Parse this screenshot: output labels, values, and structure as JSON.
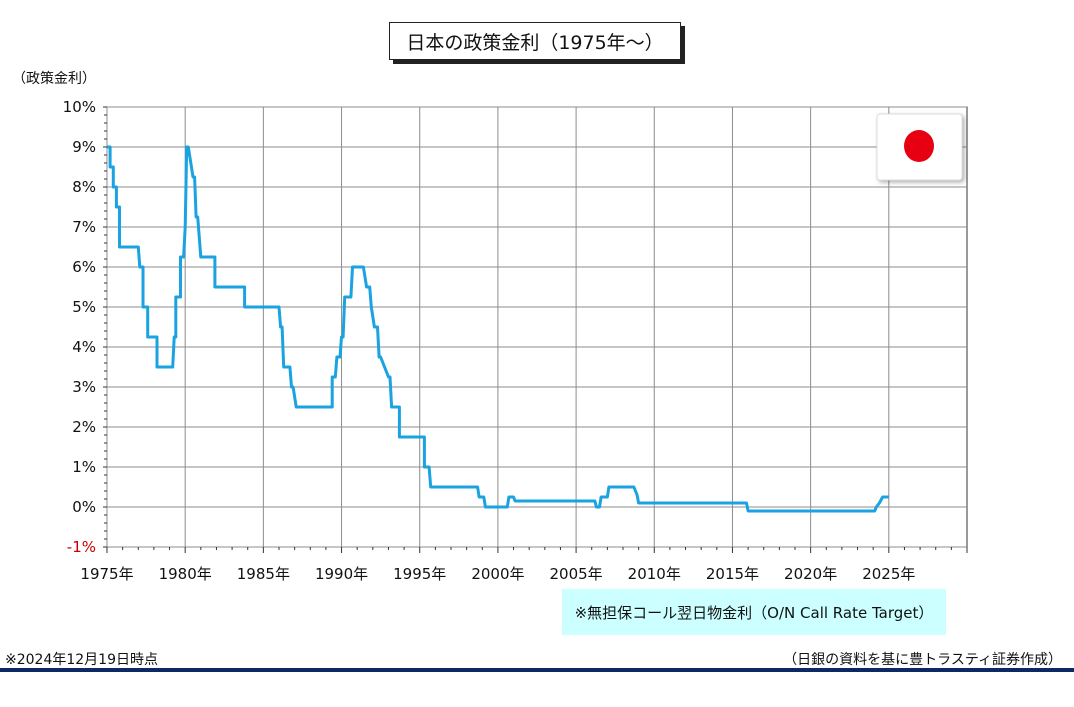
{
  "title": "日本の政策金利（1975年～）",
  "y_axis_label": "（政策金利）",
  "note": "※無担保コール翌日物金利（O/N Call Rate Target）",
  "as_of": "※2024年12月19日時点",
  "source": "（日銀の資料を基に豊トラスティ証券作成）",
  "colors": {
    "line": "#1aa3e0",
    "negative_tick": "#cc0000",
    "note_bg": "#ccffff",
    "flag_sun": "#e60012",
    "bottom_rule": "#0b2a63"
  },
  "flag_icon": "japan-flag-icon",
  "chart_data": {
    "type": "line",
    "title": "日本の政策金利（1975年～）",
    "ylabel": "（政策金利）",
    "xlim": [
      1975,
      2030
    ],
    "ylim": [
      -1,
      10
    ],
    "grid": true,
    "x_ticks": [
      1975,
      1980,
      1985,
      1990,
      1995,
      2000,
      2005,
      2010,
      2015,
      2020,
      2025
    ],
    "x_tick_labels": [
      "1975年",
      "1980年",
      "1985年",
      "1990年",
      "1995年",
      "2000年",
      "2005年",
      "2010年",
      "2015年",
      "2020年",
      "2025年"
    ],
    "y_ticks": [
      -1,
      0,
      1,
      2,
      3,
      4,
      5,
      6,
      7,
      8,
      9,
      10
    ],
    "y_tick_labels": [
      "-1%",
      "0%",
      "1%",
      "2%",
      "3%",
      "4%",
      "5%",
      "6%",
      "7%",
      "8%",
      "9%",
      "10%"
    ],
    "series": [
      {
        "x": [
          1975.0,
          1975.2,
          1975.2,
          1975.4,
          1975.4,
          1975.6,
          1975.6,
          1975.8,
          1975.8,
          1977.0,
          1977.1,
          1977.3,
          1977.3,
          1977.6,
          1977.6,
          1978.2,
          1978.2,
          1979.2,
          1979.3,
          1979.4,
          1979.4,
          1979.7,
          1979.7,
          1979.9,
          1980.0,
          1980.1,
          1980.2,
          1980.5,
          1980.6,
          1980.7,
          1980.8,
          1981.0,
          1981.2,
          1981.2,
          1981.9,
          1981.9,
          1983.8,
          1983.8,
          1986.0,
          1986.1,
          1986.2,
          1986.3,
          1986.7,
          1986.8,
          1986.9,
          1987.1,
          1987.1,
          1989.4,
          1989.4,
          1989.6,
          1989.7,
          1989.9,
          1990.0,
          1990.1,
          1990.2,
          1990.6,
          1990.7,
          1991.4,
          1991.6,
          1991.8,
          1991.9,
          1992.1,
          1992.3,
          1992.4,
          1992.5,
          1993.0,
          1993.1,
          1993.2,
          1993.7,
          1993.7,
          1995.3,
          1995.3,
          1995.6,
          1995.7,
          1998.7,
          1998.8,
          1999.1,
          1999.2,
          2000.6,
          2000.7,
          2001.0,
          2001.1,
          2006.2,
          2006.3,
          2006.5,
          2006.6,
          2007.0,
          2007.1,
          2008.7,
          2008.9,
          2009.0,
          2015.9,
          2016.0,
          2024.1,
          2024.2,
          2024.4,
          2024.6,
          2025.0
        ],
        "y": [
          9.0,
          9.0,
          8.5,
          8.5,
          8.0,
          8.0,
          7.5,
          7.5,
          6.5,
          6.5,
          6.0,
          6.0,
          5.0,
          5.0,
          4.25,
          4.25,
          3.5,
          3.5,
          4.25,
          4.25,
          5.25,
          5.25,
          6.25,
          6.25,
          7.0,
          9.0,
          9.0,
          8.25,
          8.25,
          7.25,
          7.25,
          6.25,
          6.25,
          6.25,
          6.25,
          5.5,
          5.5,
          5.0,
          5.0,
          4.5,
          4.5,
          3.5,
          3.5,
          3.0,
          3.0,
          2.5,
          2.5,
          2.5,
          3.25,
          3.25,
          3.75,
          3.75,
          4.25,
          4.25,
          5.25,
          5.25,
          6.0,
          6.0,
          5.5,
          5.5,
          5.0,
          4.5,
          4.5,
          3.75,
          3.75,
          3.25,
          3.25,
          2.5,
          2.5,
          1.75,
          1.75,
          1.0,
          1.0,
          0.5,
          0.5,
          0.25,
          0.25,
          0.0,
          0.0,
          0.25,
          0.25,
          0.15,
          0.15,
          0.0,
          0.0,
          0.25,
          0.25,
          0.5,
          0.5,
          0.3,
          0.1,
          0.1,
          -0.1,
          -0.1,
          0.0,
          0.1,
          0.25,
          0.25
        ]
      }
    ]
  }
}
